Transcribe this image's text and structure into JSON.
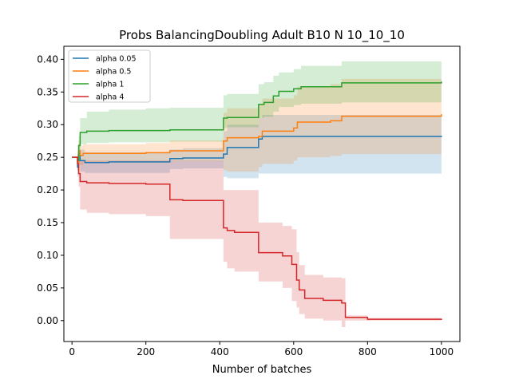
{
  "chart_data": {
    "type": "line",
    "title": "Probs BalancingDoubling Adult B10 N 10_10_10",
    "xlabel": "Number of batches",
    "ylabel": "",
    "xlim": [
      -22,
      1050
    ],
    "ylim": [
      -0.032,
      0.42
    ],
    "xticks": [
      0,
      200,
      400,
      600,
      800,
      1000
    ],
    "xtick_labels": [
      "0",
      "200",
      "400",
      "600",
      "800",
      "1000"
    ],
    "yticks": [
      0.0,
      0.05,
      0.1,
      0.15,
      0.2,
      0.25,
      0.3,
      0.35,
      0.4
    ],
    "ytick_labels": [
      "0.00",
      "0.05",
      "0.10",
      "0.15",
      "0.20",
      "0.25",
      "0.30",
      "0.35",
      "0.40"
    ],
    "grid": false,
    "legend_position": "top-left",
    "step_lines": true,
    "series": [
      {
        "name": "alpha 0.05",
        "color": "#1f77b4",
        "x": [
          0,
          10,
          15,
          18,
          22,
          35,
          100,
          200,
          265,
          300,
          410,
          420,
          505,
          515,
          520,
          1000
        ],
        "y": [
          0.25,
          0.25,
          0.235,
          0.255,
          0.245,
          0.242,
          0.243,
          0.243,
          0.248,
          0.249,
          0.255,
          0.265,
          0.278,
          0.282,
          0.282,
          0.283
        ],
        "lower": [
          0.25,
          0.25,
          0.22,
          0.24,
          0.228,
          0.226,
          0.226,
          0.226,
          0.232,
          0.233,
          0.22,
          0.218,
          0.225,
          0.225,
          0.225,
          0.225
        ],
        "upper": [
          0.25,
          0.25,
          0.25,
          0.27,
          0.262,
          0.258,
          0.258,
          0.258,
          0.262,
          0.264,
          0.29,
          0.3,
          0.31,
          0.315,
          0.315,
          0.32
        ]
      },
      {
        "name": "alpha 0.5",
        "color": "#ff7f0e",
        "x": [
          0,
          10,
          15,
          18,
          22,
          30,
          100,
          200,
          265,
          300,
          410,
          420,
          505,
          515,
          600,
          610,
          700,
          730,
          1000
        ],
        "y": [
          0.25,
          0.25,
          0.24,
          0.26,
          0.253,
          0.256,
          0.256,
          0.257,
          0.26,
          0.26,
          0.275,
          0.28,
          0.282,
          0.29,
          0.295,
          0.304,
          0.306,
          0.313,
          0.316
        ],
        "lower": [
          0.25,
          0.25,
          0.23,
          0.245,
          0.238,
          0.242,
          0.242,
          0.242,
          0.244,
          0.244,
          0.23,
          0.228,
          0.235,
          0.24,
          0.245,
          0.25,
          0.252,
          0.255,
          0.258
        ],
        "upper": [
          0.25,
          0.25,
          0.255,
          0.275,
          0.268,
          0.27,
          0.27,
          0.272,
          0.276,
          0.276,
          0.318,
          0.325,
          0.33,
          0.34,
          0.345,
          0.358,
          0.362,
          0.37,
          0.374
        ]
      },
      {
        "name": "alpha 1",
        "color": "#2ca02c",
        "x": [
          0,
          10,
          15,
          18,
          22,
          40,
          100,
          200,
          265,
          300,
          410,
          420,
          505,
          520,
          545,
          560,
          600,
          620,
          730,
          1000
        ],
        "y": [
          0.25,
          0.25,
          0.245,
          0.268,
          0.288,
          0.29,
          0.291,
          0.291,
          0.292,
          0.292,
          0.31,
          0.311,
          0.331,
          0.334,
          0.344,
          0.351,
          0.355,
          0.358,
          0.364,
          0.366
        ],
        "lower": [
          0.25,
          0.25,
          0.235,
          0.255,
          0.27,
          0.272,
          0.273,
          0.273,
          0.274,
          0.274,
          0.295,
          0.296,
          0.31,
          0.312,
          0.32,
          0.327,
          0.33,
          0.332,
          0.334,
          0.336
        ],
        "upper": [
          0.25,
          0.25,
          0.258,
          0.282,
          0.31,
          0.32,
          0.323,
          0.325,
          0.326,
          0.326,
          0.345,
          0.347,
          0.362,
          0.365,
          0.375,
          0.38,
          0.385,
          0.39,
          0.397,
          0.399
        ]
      },
      {
        "name": "alpha 4",
        "color": "#d62728",
        "x": [
          0,
          10,
          15,
          18,
          22,
          40,
          100,
          200,
          265,
          300,
          410,
          420,
          440,
          505,
          570,
          595,
          608,
          615,
          630,
          680,
          730,
          740,
          800,
          1000
        ],
        "y": [
          0.25,
          0.25,
          0.24,
          0.225,
          0.213,
          0.211,
          0.21,
          0.209,
          0.185,
          0.184,
          0.142,
          0.138,
          0.135,
          0.104,
          0.099,
          0.086,
          0.062,
          0.047,
          0.034,
          0.031,
          0.027,
          0.005,
          0.002,
          0.001
        ],
        "lower": [
          0.25,
          0.25,
          0.23,
          0.205,
          0.17,
          0.165,
          0.163,
          0.16,
          0.125,
          0.125,
          0.09,
          0.08,
          0.075,
          0.06,
          0.05,
          0.03,
          0.02,
          0.01,
          0.003,
          0.0,
          -0.01,
          0.0,
          0.0,
          0.0
        ],
        "upper": [
          0.25,
          0.25,
          0.255,
          0.245,
          0.245,
          0.245,
          0.245,
          0.245,
          0.245,
          0.245,
          0.2,
          0.2,
          0.2,
          0.15,
          0.145,
          0.14,
          0.105,
          0.085,
          0.07,
          0.066,
          0.065,
          0.008,
          0.004,
          0.003
        ]
      }
    ]
  }
}
